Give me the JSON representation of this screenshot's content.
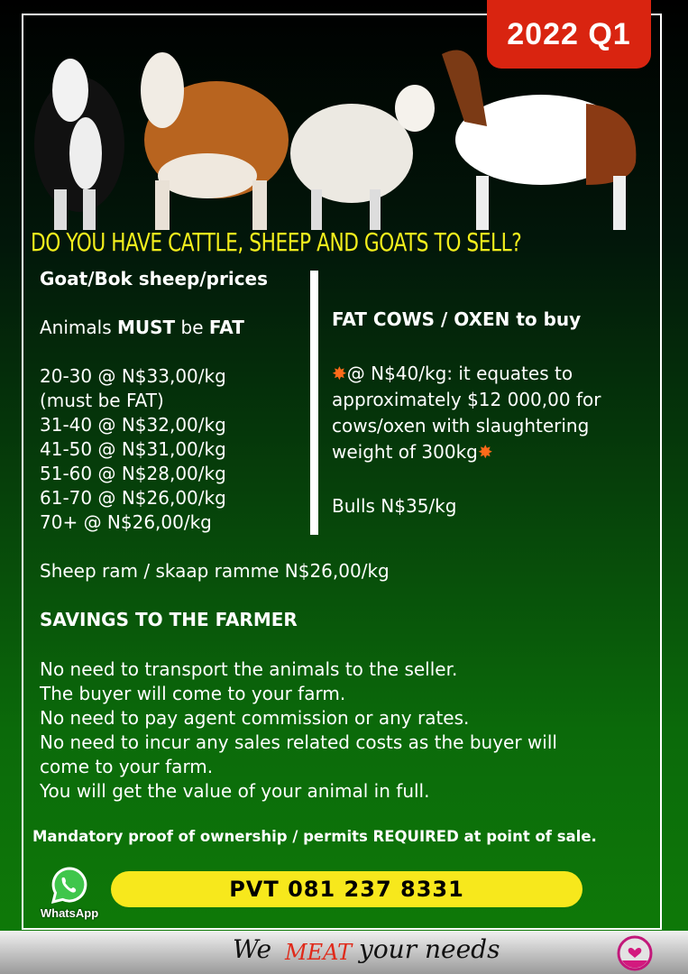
{
  "badge": "2022  Q1",
  "headline": "DO YOU HAVE CATTLE, SHEEP AND GOATS TO SELL?",
  "left": {
    "title": "Goat/Bok sheep/prices",
    "must_prefix": "Animals ",
    "must_word": "MUST",
    "must_mid": " be ",
    "must_fat": "FAT",
    "prices": [
      "20-30 @ N$33,00/kg",
      "(must be FAT)",
      "31-40 @ N$32,00/kg",
      "41-50 @ N$31,00/kg",
      "51-60 @ N$28,00/kg",
      "61-70 @ N$26,00/kg",
      "70+ @ N$26,00/kg"
    ]
  },
  "right": {
    "title": "FAT COWS / OXEN to buy",
    "lines": [
      "@ N$40/kg: it equates to",
      "approximately $12 000,00 for",
      "cows/oxen with slaughtering",
      "weight of 300kg"
    ],
    "bulls": "Bulls N$35/kg"
  },
  "sheep_ram": "Sheep ram / skaap ramme N$26,00/kg",
  "savings": {
    "title": "SAVINGS TO THE FARMER",
    "lines": [
      "No need to transport the animals to the seller.",
      "The buyer will come to your farm.",
      "No need to pay agent commission or any rates.",
      "No need to incur any sales related costs as the buyer will",
      "come to your farm.",
      "You will get the value of your animal in full."
    ]
  },
  "notice": "Mandatory proof of ownership / permits REQUIRED at point of sale.",
  "whatsapp_label": "WhatsApp",
  "phone": "PVT 081 237 8331",
  "slogan": {
    "we": "We",
    "meat": "MEAT",
    "rest": "your needs"
  },
  "colors": {
    "badge": "#d92410",
    "headline": "#f4ef1c",
    "pill": "#f7e81c",
    "meat": "#e02a1a"
  }
}
